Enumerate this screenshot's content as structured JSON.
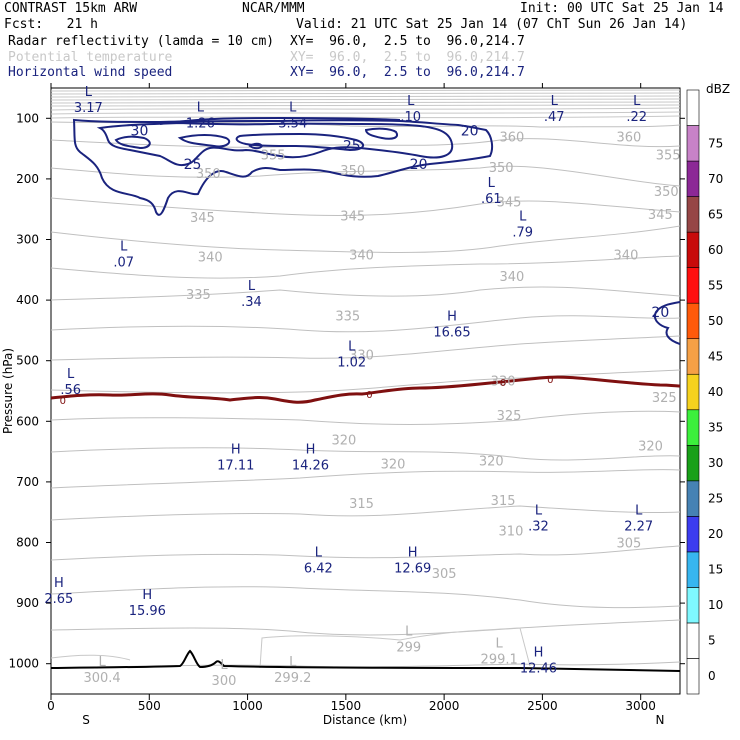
{
  "header": {
    "model": "CONTRAST 15km ARW",
    "org": "NCAR/MMM",
    "init": "Init: 00 UTC Sat 25 Jan 14",
    "fcst": "Fcst:   21 h",
    "valid": "Valid: 21 UTC Sat 25 Jan 14 (07 ChT Sun 26 Jan 14)",
    "fields": [
      {
        "name": "Radar reflectivity (lamda = 10 cm)",
        "xy": "XY=  96.0,  2.5 to  96.0,214.7",
        "color": "#000000"
      },
      {
        "name": "Potential temperature",
        "xy": "XY=  96.0,  2.5 to  96.0,214.7",
        "color": "#c8c8c8"
      },
      {
        "name": "Horizontal wind speed",
        "xy": "XY=  96.0,  2.5 to  96.0,214.7",
        "color": "#1a237e"
      }
    ]
  },
  "chart_data": {
    "type": "cross-section contour",
    "xlabel": "Distance (km)",
    "ylabel": "Pressure (hPa)",
    "xlim": [
      0,
      3200
    ],
    "ylim": [
      1050,
      50
    ],
    "xticks": [
      0,
      500,
      1000,
      1500,
      2000,
      2500,
      3000
    ],
    "yticks": [
      100,
      200,
      300,
      400,
      500,
      600,
      700,
      800,
      900,
      1000
    ],
    "x_end_labels": {
      "left": "S",
      "right": "N"
    },
    "colorbar": {
      "title": "dBZ",
      "levels": [
        {
          "label": "0",
          "color": "#ffffff"
        },
        {
          "label": "5",
          "color": "#ffffff"
        },
        {
          "label": "10",
          "color": "#7ff8ff"
        },
        {
          "label": "15",
          "color": "#37b6f0"
        },
        {
          "label": "20",
          "color": "#3c3cf0"
        },
        {
          "label": "25",
          "color": "#4682b4"
        },
        {
          "label": "30",
          "color": "#18a018"
        },
        {
          "label": "35",
          "color": "#3cf03c"
        },
        {
          "label": "40",
          "color": "#f5d21e"
        },
        {
          "label": "45",
          "color": "#f5a046"
        },
        {
          "label": "50",
          "color": "#ff5a0a"
        },
        {
          "label": "55",
          "color": "#ff0f0f"
        },
        {
          "label": "60",
          "color": "#c80a0a"
        },
        {
          "label": "65",
          "color": "#964646"
        },
        {
          "label": "70",
          "color": "#8c2896"
        },
        {
          "label": "75",
          "color": "#c882c8"
        },
        {
          "label": "",
          "color": "#ffffff"
        }
      ]
    },
    "theta_labels": [
      {
        "text": "360",
        "x": 2345,
        "p": 130
      },
      {
        "text": "360",
        "x": 2940,
        "p": 130
      },
      {
        "text": "355",
        "x": 1130,
        "p": 160
      },
      {
        "text": "355",
        "x": 3140,
        "p": 160
      },
      {
        "text": "350",
        "x": 800,
        "p": 190
      },
      {
        "text": "350",
        "x": 1535,
        "p": 185
      },
      {
        "text": "350",
        "x": 2290,
        "p": 180
      },
      {
        "text": "350",
        "x": 3130,
        "p": 220
      },
      {
        "text": "345",
        "x": 770,
        "p": 263
      },
      {
        "text": "345",
        "x": 1535,
        "p": 260
      },
      {
        "text": "345",
        "x": 2330,
        "p": 237
      },
      {
        "text": "345",
        "x": 3100,
        "p": 258
      },
      {
        "text": "340",
        "x": 810,
        "p": 328
      },
      {
        "text": "340",
        "x": 1580,
        "p": 325
      },
      {
        "text": "340",
        "x": 2345,
        "p": 360
      },
      {
        "text": "340",
        "x": 2925,
        "p": 325
      },
      {
        "text": "335",
        "x": 750,
        "p": 390
      },
      {
        "text": "335",
        "x": 1510,
        "p": 425
      },
      {
        "text": "330",
        "x": 1580,
        "p": 490
      },
      {
        "text": "330",
        "x": 2300,
        "p": 533
      },
      {
        "text": "325",
        "x": 2330,
        "p": 590
      },
      {
        "text": "325",
        "x": 3120,
        "p": 560
      },
      {
        "text": "320",
        "x": 1490,
        "p": 630
      },
      {
        "text": "320",
        "x": 1740,
        "p": 670
      },
      {
        "text": "320",
        "x": 2240,
        "p": 665
      },
      {
        "text": "320",
        "x": 3050,
        "p": 640
      },
      {
        "text": "315",
        "x": 1580,
        "p": 735
      },
      {
        "text": "315",
        "x": 2300,
        "p": 730
      },
      {
        "text": "310",
        "x": 2340,
        "p": 780
      },
      {
        "text": "305",
        "x": 2000,
        "p": 850
      },
      {
        "text": "305",
        "x": 2940,
        "p": 800
      }
    ],
    "wind_labels": [
      {
        "text": "30",
        "x": 450,
        "p": 120
      },
      {
        "text": "25",
        "x": 720,
        "p": 175
      },
      {
        "text": "25",
        "x": 1530,
        "p": 145
      },
      {
        "text": "20",
        "x": 2130,
        "p": 120
      },
      {
        "text": "20",
        "x": 1870,
        "p": 175
      },
      {
        "text": "20",
        "x": 3100,
        "p": 420
      }
    ],
    "freezing_label": {
      "text": "0",
      "points": [
        [
          60,
          565
        ],
        [
          1620,
          555
        ],
        [
          2300,
          535
        ],
        [
          2540,
          530
        ]
      ]
    },
    "extrema": [
      {
        "kind": "L",
        "value": "3.17",
        "x": 190,
        "p": 70
      },
      {
        "kind": "L",
        "value": "1.26",
        "x": 760,
        "p": 95
      },
      {
        "kind": "L",
        "value": "3.54",
        "x": 1230,
        "p": 95
      },
      {
        "kind": "L",
        "value": ".10",
        "x": 1830,
        "p": 85
      },
      {
        "kind": "L",
        "value": ".47",
        "x": 2560,
        "p": 85
      },
      {
        "kind": "L",
        "value": ".22",
        "x": 2980,
        "p": 85
      },
      {
        "kind": "L",
        "value": ".61",
        "x": 2240,
        "p": 220
      },
      {
        "kind": "L",
        "value": ".07",
        "x": 370,
        "p": 325
      },
      {
        "kind": "L",
        "value": ".79",
        "x": 2400,
        "p": 275
      },
      {
        "kind": "L",
        "value": ".34",
        "x": 1020,
        "p": 390
      },
      {
        "kind": "H",
        "value": "16.65",
        "x": 2040,
        "p": 440
      },
      {
        "kind": "L",
        "value": "1.02",
        "x": 1530,
        "p": 490
      },
      {
        "kind": "L",
        "value": ".56",
        "x": 100,
        "p": 535
      },
      {
        "kind": "H",
        "value": "17.11",
        "x": 940,
        "p": 660
      },
      {
        "kind": "H",
        "value": "14.26",
        "x": 1320,
        "p": 660
      },
      {
        "kind": "L",
        "value": ".32",
        "x": 2480,
        "p": 760
      },
      {
        "kind": "L",
        "value": "2.27",
        "x": 2990,
        "p": 760
      },
      {
        "kind": "L",
        "value": "6.42",
        "x": 1360,
        "p": 830
      },
      {
        "kind": "H",
        "value": "12.69",
        "x": 1840,
        "p": 830
      },
      {
        "kind": "H",
        "value": "2.65",
        "x": 40,
        "p": 880
      },
      {
        "kind": "H",
        "value": "15.96",
        "x": 490,
        "p": 900
      },
      {
        "kind": "L",
        "value": "299",
        "x": 1820,
        "p": 960
      },
      {
        "kind": "L",
        "value": "299.1",
        "x": 2280,
        "p": 980
      },
      {
        "kind": "H",
        "value": "12.46",
        "x": 2480,
        "p": 995
      },
      {
        "kind": "L",
        "value": "300.4",
        "x": 260,
        "p": 1010
      },
      {
        "kind": "L",
        "value": "300",
        "x": 880,
        "p": 1015
      },
      {
        "kind": "L",
        "value": "299.2",
        "x": 1230,
        "p": 1010
      }
    ]
  }
}
